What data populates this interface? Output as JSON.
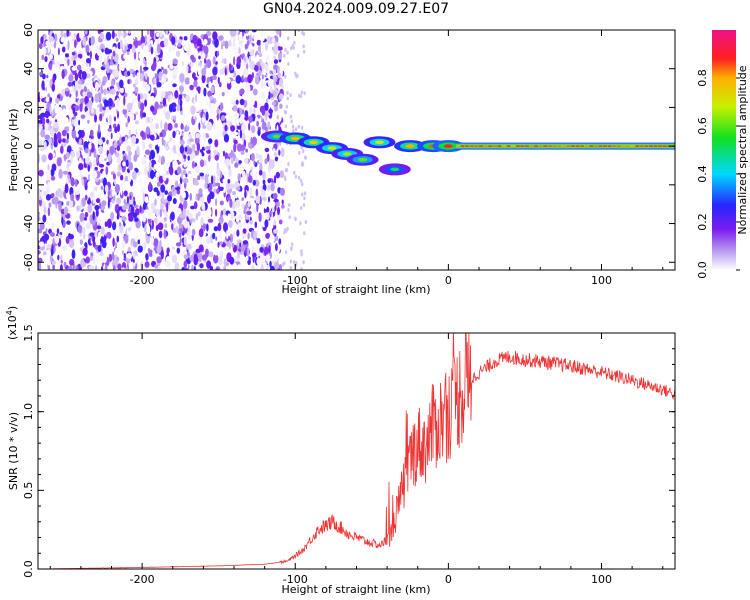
{
  "title": "GN04.2024.009.09.27.E07",
  "chart_data": [
    {
      "type": "heatmap",
      "xlabel": "Height of straight line (km)",
      "ylabel": "Frequency (Hz)",
      "xlim": [
        -268,
        148
      ],
      "ylim": [
        -64,
        60
      ],
      "x_ticks": [
        "-200",
        "-100",
        "0",
        "100"
      ],
      "y_ticks": [
        "60",
        "40",
        "20",
        "0",
        "-20",
        "-40",
        "-60"
      ],
      "colorbar": {
        "label": "Normalized spectral amplitude",
        "range": [
          0,
          1
        ],
        "ticks": [
          "0.0",
          "0.2",
          "0.4",
          "0.6",
          "0.8"
        ],
        "colormap": "white-violet-blue-cyan-green-yellow-red-magenta"
      },
      "features": {
        "noise_region_x": [
          -268,
          -108
        ],
        "signal_track": [
          {
            "x": -112,
            "freq": 5,
            "amp": 0.6
          },
          {
            "x": -100,
            "freq": 4,
            "amp": 0.8
          },
          {
            "x": -88,
            "freq": 2,
            "amp": 0.75
          },
          {
            "x": -76,
            "freq": -1,
            "amp": 0.7
          },
          {
            "x": -66,
            "freq": -4,
            "amp": 0.65
          },
          {
            "x": -56,
            "freq": -7,
            "amp": 0.6
          },
          {
            "x": -45,
            "freq": 2,
            "amp": 0.7
          },
          {
            "x": -35,
            "freq": -12,
            "amp": 0.5
          },
          {
            "x": -25,
            "freq": 0,
            "amp": 0.8
          },
          {
            "x": -10,
            "freq": 0,
            "amp": 0.85
          },
          {
            "x": 0,
            "freq": 0,
            "amp": 0.9
          }
        ],
        "steady_line": {
          "x": [
            5,
            148
          ],
          "freq": 0,
          "amp": 0.95
        }
      }
    },
    {
      "type": "line",
      "xlabel": "Height of straight line (km)",
      "ylabel": "SNR (10 * v/v)",
      "scale_note_base": "(x10",
      "scale_note_exp": "4",
      "scale_note_end": ")",
      "xlim": [
        -268,
        148
      ],
      "ylim": [
        0,
        1.5
      ],
      "x_ticks": [
        "-200",
        "-100",
        "0",
        "100"
      ],
      "y_ticks": [
        "0.0",
        "0.5",
        "1.0",
        "1.5"
      ],
      "color": "#ee3333",
      "series": [
        {
          "x": [
            -268,
            -200,
            -150,
            -120,
            -105,
            -95,
            -85,
            -75,
            -65,
            -55,
            -45,
            -38,
            -30,
            -25,
            -20,
            -15,
            -10,
            -5,
            0,
            5,
            10,
            15,
            20,
            25,
            30,
            40,
            50,
            60,
            80,
            100,
            120,
            140,
            148
          ],
          "y": [
            0.0,
            0.01,
            0.02,
            0.03,
            0.05,
            0.12,
            0.25,
            0.3,
            0.22,
            0.18,
            0.15,
            0.2,
            0.5,
            0.7,
            0.8,
            0.78,
            0.9,
            0.95,
            1.0,
            1.08,
            1.15,
            1.2,
            1.25,
            1.28,
            1.32,
            1.35,
            1.33,
            1.32,
            1.29,
            1.25,
            1.2,
            1.14,
            1.11
          ]
        }
      ]
    }
  ]
}
